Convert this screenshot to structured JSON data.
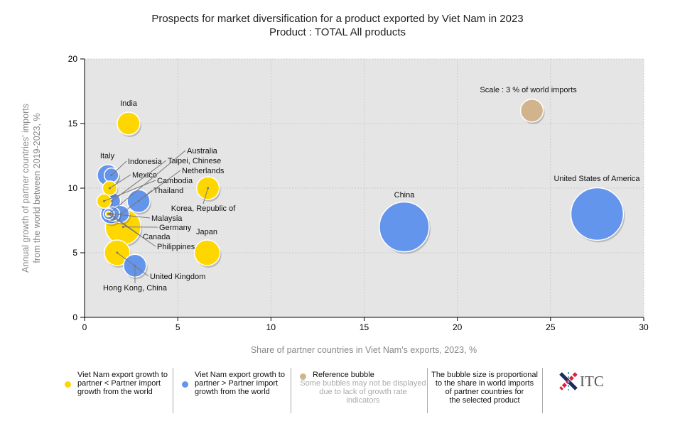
{
  "chart_data": {
    "type": "bubble",
    "title": "Prospects for market diversification for a product exported by Viet Nam in 2023",
    "subtitle": "Product : TOTAL All products",
    "xlabel": "Share of partner countries in Viet Nam's exports, 2023, %",
    "ylabel_line1": "Annual growth of partner countries' imports",
    "ylabel_line2": "from the world between 2019-2023, %",
    "xlim": [
      0,
      30
    ],
    "ylim": [
      0,
      20
    ],
    "xticks": [
      "0",
      "5",
      "10",
      "15",
      "20",
      "25",
      "30"
    ],
    "yticks": [
      "0",
      "5",
      "10",
      "15",
      "20"
    ],
    "grid": true,
    "colors": {
      "yellow": "#FFD700",
      "blue": "#6495ED",
      "reference": "#D2B48C"
    },
    "points": [
      {
        "name": "United States of America",
        "x": 27.5,
        "y": 8.0,
        "size": 16,
        "group": "blue"
      },
      {
        "name": "China",
        "x": 17.15,
        "y": 7.0,
        "size": 14.4,
        "group": "blue"
      },
      {
        "name": "Germany",
        "x": 2.07,
        "y": 7.0,
        "size": 7.3,
        "group": "yellow"
      },
      {
        "name": "India",
        "x": 2.36,
        "y": 15.0,
        "size": 3.0,
        "group": "yellow"
      },
      {
        "name": "Japan",
        "x": 6.58,
        "y": 5.0,
        "size": 3.8,
        "group": "yellow"
      },
      {
        "name": "Korea, Republic of",
        "x": 6.62,
        "y": 10.0,
        "size": 3.0,
        "group": "yellow"
      },
      {
        "name": "United Kingdom",
        "x": 1.75,
        "y": 5.0,
        "size": 3.8,
        "group": "yellow"
      },
      {
        "name": "Hong Kong, China",
        "x": 2.7,
        "y": 4.0,
        "size": 3.0,
        "group": "blue"
      },
      {
        "name": "Italy",
        "x": 1.25,
        "y": 11.0,
        "size": 2.6,
        "group": "blue"
      },
      {
        "name": "Indonesia",
        "x": 1.44,
        "y": 11.0,
        "size": 1.2,
        "group": "blue"
      },
      {
        "name": "Mexico",
        "x": 1.35,
        "y": 10.0,
        "size": 1.2,
        "group": "yellow"
      },
      {
        "name": "Thailand",
        "x": 2.9,
        "y": 9.0,
        "size": 3.0,
        "group": "blue"
      },
      {
        "name": "Cambodia",
        "x": 1.05,
        "y": 9.0,
        "size": 1.2,
        "group": "yellow"
      },
      {
        "name": "Taipei, Chinese",
        "x": 1.47,
        "y": 9.0,
        "size": 1.7,
        "group": "blue"
      },
      {
        "name": "Netherlands",
        "x": 1.94,
        "y": 8.0,
        "size": 1.7,
        "group": "blue"
      },
      {
        "name": "Canada",
        "x": 1.4,
        "y": 8.0,
        "size": 2.3,
        "group": "blue"
      },
      {
        "name": "Malaysia",
        "x": 1.5,
        "y": 8.0,
        "size": 1.2,
        "group": "blue"
      },
      {
        "name": "Australia",
        "x": 1.3,
        "y": 8.0,
        "size": 0.7,
        "group": "blue"
      },
      {
        "name": "Philippines",
        "x": 1.28,
        "y": 8.0,
        "size": 0.2,
        "group": "yellow"
      }
    ],
    "reference": {
      "label": "Scale : 3 % of world imports",
      "x": 24.0,
      "y": 16.0,
      "size": 3
    }
  },
  "legend": {
    "yellow_text": [
      "Viet Nam export growth to",
      "partner < Partner import",
      "growth from the world"
    ],
    "blue_text": [
      "Viet Nam export growth to",
      "partner > Partner import",
      "growth from the world"
    ],
    "reference_title": "Reference bubble",
    "reference_note": [
      "Some bubbles may not be displayed",
      "due to lack of growth rate",
      "indicators"
    ],
    "size_note": [
      "The bubble size is proportional",
      "to the share in world imports",
      "of partner countries for",
      "the selected product"
    ],
    "logo": "ITC"
  }
}
